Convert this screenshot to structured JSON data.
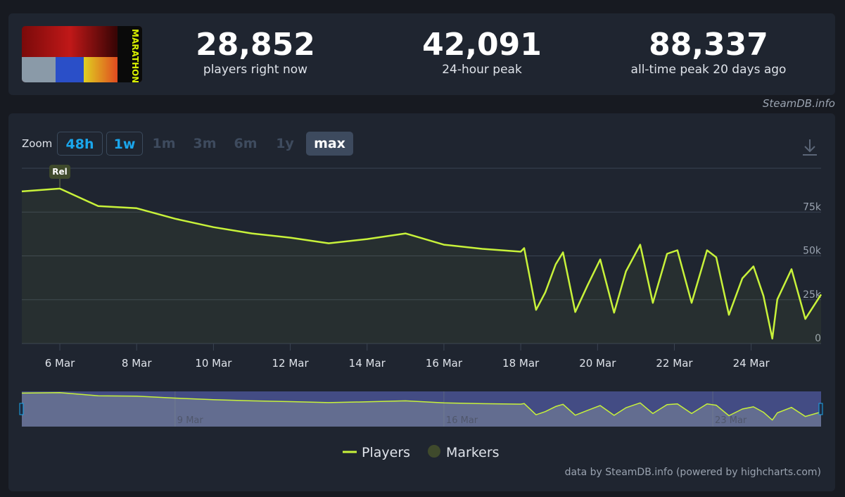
{
  "header": {
    "thumbnail_text": "MARATHON",
    "stats": [
      {
        "value": "28,852",
        "label": "players right now"
      },
      {
        "value": "42,091",
        "label": "24-hour peak"
      },
      {
        "value": "88,337",
        "label": "all-time peak 20 days ago"
      }
    ],
    "source": "SteamDB.info"
  },
  "zoom": {
    "label": "Zoom",
    "buttons": [
      "48h",
      "1w",
      "1m",
      "3m",
      "6m",
      "1y",
      "max"
    ]
  },
  "chart_data": {
    "type": "line",
    "x": [
      5.01,
      6.0,
      7.0,
      8.0,
      9.0,
      10.0,
      11.0,
      12.0,
      13.0,
      14.0,
      15.0,
      16.0,
      17.0,
      18.0,
      18.09,
      18.4,
      18.64,
      18.91,
      19.1,
      19.42,
      19.74,
      20.07,
      20.43,
      20.74,
      21.11,
      21.44,
      21.81,
      22.08,
      22.45,
      22.85,
      23.09,
      23.42,
      23.77,
      24.06,
      24.32,
      24.55,
      24.68,
      25.05,
      25.41,
      25.82
    ],
    "series": [
      {
        "name": "Players",
        "color": "#c8f23a",
        "values": [
          86800,
          88400,
          78400,
          77200,
          71200,
          66400,
          62800,
          60400,
          57200,
          59600,
          62800,
          56400,
          54000,
          52400,
          54400,
          19200,
          29200,
          45200,
          52000,
          18000,
          33200,
          48000,
          17600,
          41200,
          56400,
          23200,
          51200,
          53200,
          23200,
          53200,
          49200,
          16400,
          37200,
          44000,
          27200,
          2800,
          25200,
          42400,
          14000,
          28000
        ]
      }
    ],
    "markers": {
      "name": "Markers",
      "color": "#3f4a2c",
      "points": [
        {
          "x": 6.0,
          "label": "Rel"
        }
      ]
    },
    "xlim": [
      5.01,
      25.82
    ],
    "xticks": [
      {
        "value": 6,
        "label": "6 Mar"
      },
      {
        "value": 8,
        "label": "8 Mar"
      },
      {
        "value": 10,
        "label": "10 Mar"
      },
      {
        "value": 12,
        "label": "12 Mar"
      },
      {
        "value": 14,
        "label": "14 Mar"
      },
      {
        "value": 16,
        "label": "16 Mar"
      },
      {
        "value": 18,
        "label": "18 Mar"
      },
      {
        "value": 20,
        "label": "20 Mar"
      },
      {
        "value": 22,
        "label": "22 Mar"
      },
      {
        "value": 24,
        "label": "24 Mar"
      }
    ],
    "ylim": [
      0,
      100000
    ],
    "yticks": [
      0,
      {
        "value": 25000,
        "label": "25k"
      },
      {
        "value": 50000,
        "label": "50k"
      },
      {
        "value": 75000,
        "label": "75k"
      }
    ],
    "navigator_xticks": [
      {
        "value": 9,
        "label": "9 Mar"
      },
      {
        "value": 16,
        "label": "16 Mar"
      },
      {
        "value": 23,
        "label": "23 Mar"
      }
    ],
    "grid": true,
    "credits": "data by SteamDB.info (powered by highcharts.com)"
  }
}
